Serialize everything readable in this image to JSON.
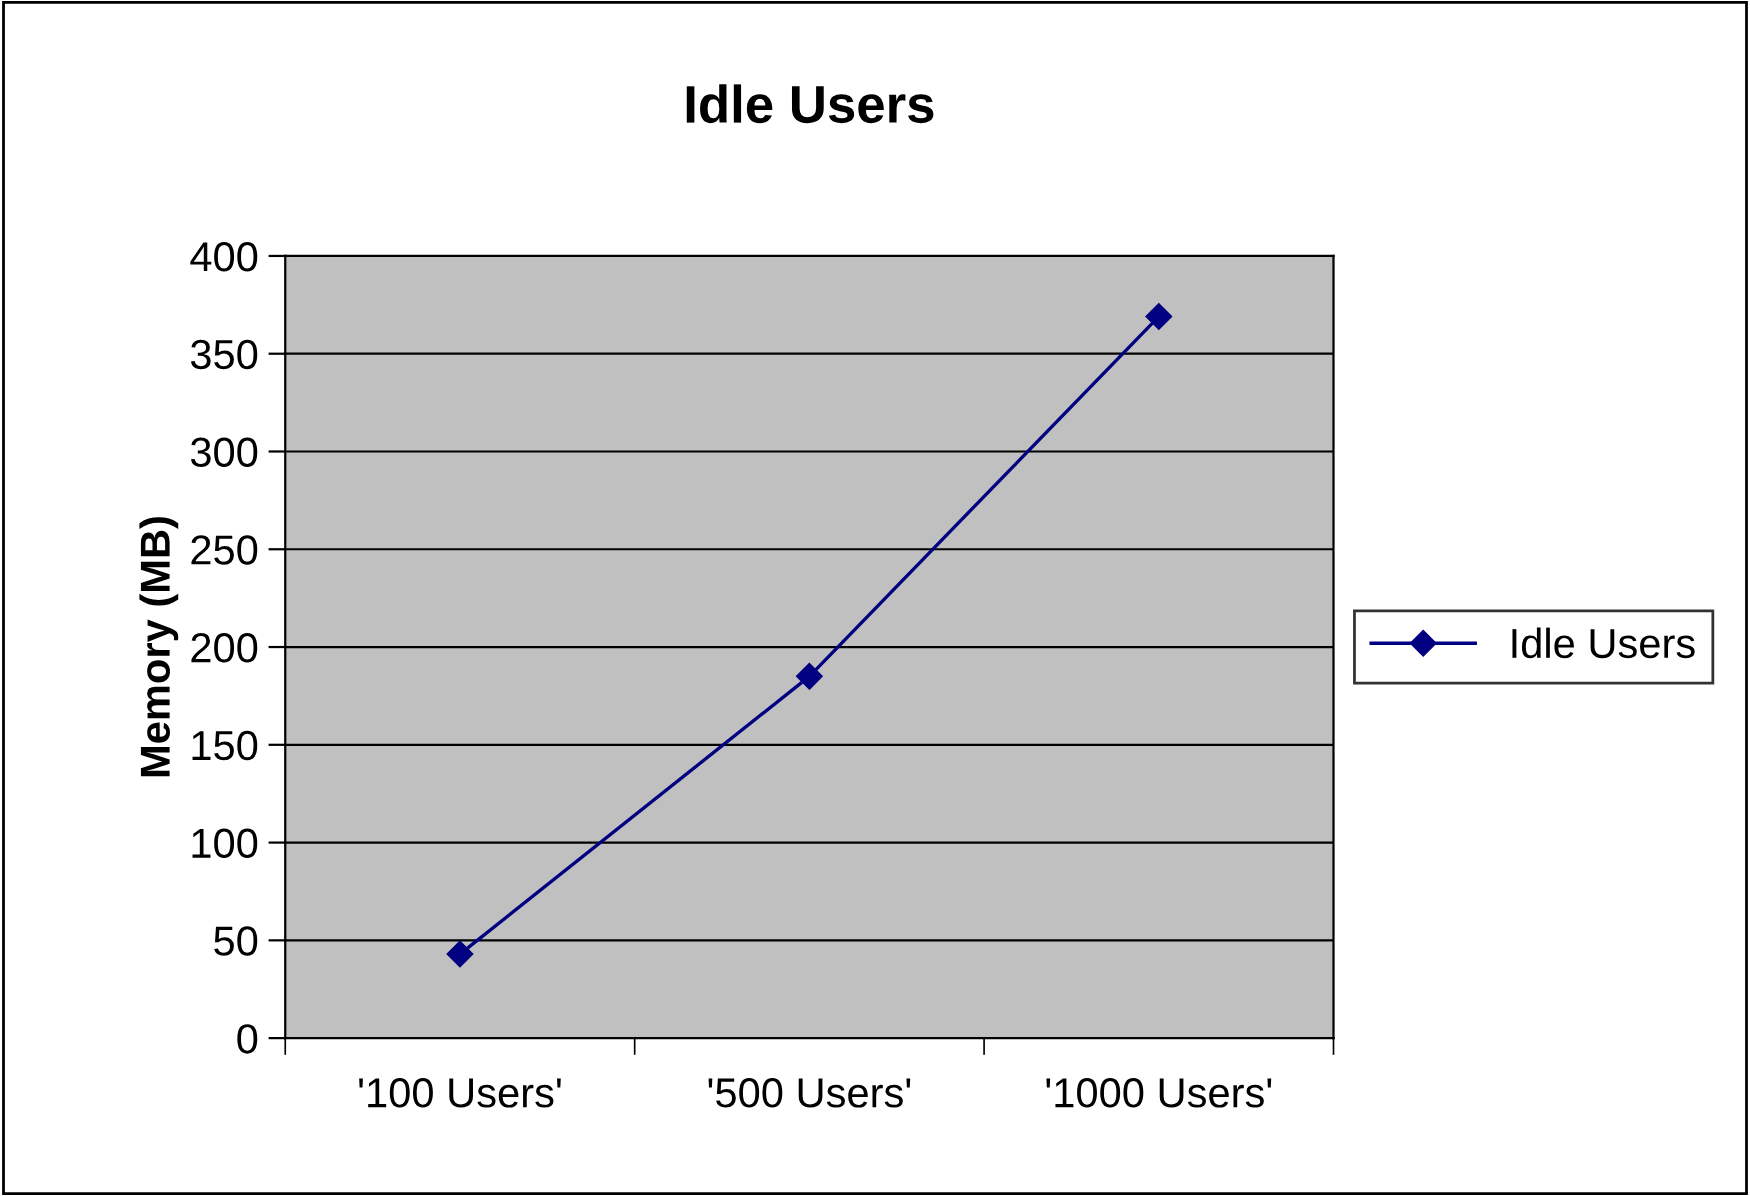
{
  "chart_data": {
    "type": "line",
    "title": "Idle Users",
    "ylabel": "Memory (MB)",
    "categories": [
      "'100 Users'",
      "'500 Users'",
      "'1000 Users'"
    ],
    "series": [
      {
        "name": "Idle Users",
        "color": "#000080",
        "values": [
          43,
          185,
          369
        ]
      }
    ],
    "ylim": [
      0,
      400
    ],
    "yticks": [
      0,
      50,
      100,
      150,
      200,
      250,
      300,
      350,
      400
    ],
    "grid": "y",
    "legend": "right",
    "marker": "diamond",
    "line_style": "solid"
  }
}
